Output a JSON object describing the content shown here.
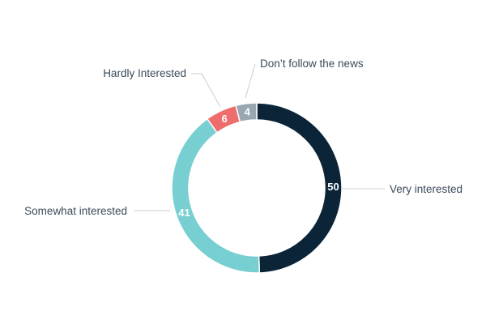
{
  "chart_data": {
    "type": "pie",
    "variant": "donut",
    "title": "",
    "categories": [
      "Very interested",
      "Somewhat interested",
      "Hardly Interested",
      "Don’t follow the news"
    ],
    "values": [
      50,
      41,
      6,
      4
    ],
    "colors": [
      "#0b2438",
      "#78cfd2",
      "#ef6c6c",
      "#9aa7b0"
    ],
    "legend": "none"
  }
}
